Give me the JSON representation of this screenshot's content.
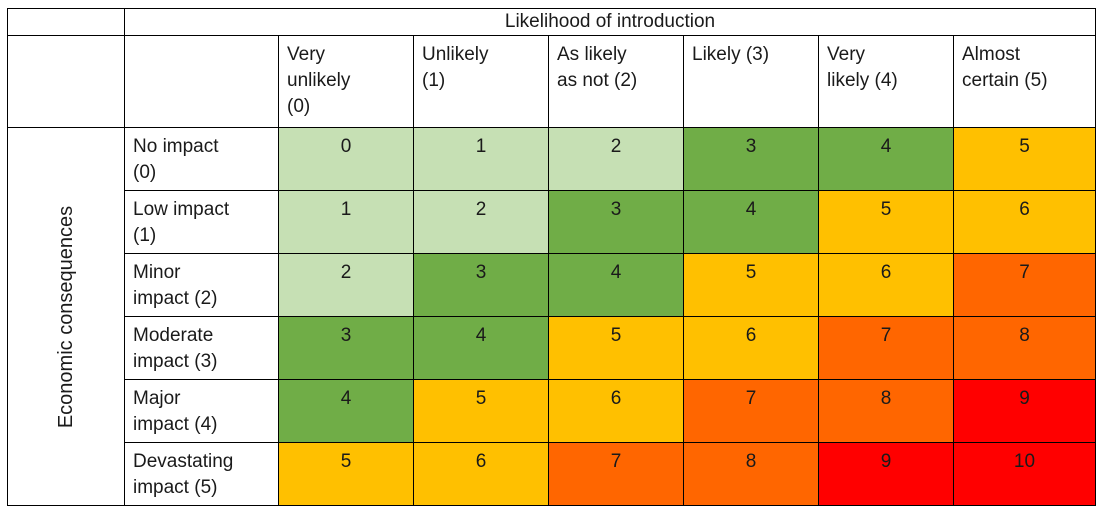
{
  "header": {
    "title": "Likelihood of introduction"
  },
  "side_label": "Economic consequences",
  "columns": [
    {
      "lines": [
        "Very",
        "unlikely",
        "(0)"
      ]
    },
    {
      "lines": [
        "Unlikely",
        "(1)"
      ]
    },
    {
      "lines": [
        "As likely",
        "as not (2)"
      ]
    },
    {
      "lines": [
        "Likely (3)"
      ]
    },
    {
      "lines": [
        "Very",
        "likely (4)"
      ]
    },
    {
      "lines": [
        "Almost",
        "certain (5)"
      ]
    }
  ],
  "rows": [
    {
      "lines": [
        "No impact",
        "(0)"
      ],
      "values": [
        "0",
        "1",
        "2",
        "3",
        "4",
        "5"
      ]
    },
    {
      "lines": [
        "Low impact",
        "(1)"
      ],
      "values": [
        "1",
        "2",
        "3",
        "4",
        "5",
        "6"
      ]
    },
    {
      "lines": [
        "Minor",
        "impact (2)"
      ],
      "values": [
        "2",
        "3",
        "4",
        "5",
        "6",
        "7"
      ]
    },
    {
      "lines": [
        "Moderate",
        "impact (3)"
      ],
      "values": [
        "3",
        "4",
        "5",
        "6",
        "7",
        "8"
      ]
    },
    {
      "lines": [
        "Major",
        "impact (4)"
      ],
      "values": [
        "4",
        "5",
        "6",
        "7",
        "8",
        "9"
      ]
    },
    {
      "lines": [
        "Devastating",
        "impact (5)"
      ],
      "values": [
        "5",
        "6",
        "7",
        "8",
        "9",
        "10"
      ]
    }
  ],
  "colors": {
    "very_low": "#c6e0b4",
    "low": "#70ad47",
    "medium": "#ffc000",
    "high": "#ff6600",
    "very_high": "#ff0000"
  }
}
